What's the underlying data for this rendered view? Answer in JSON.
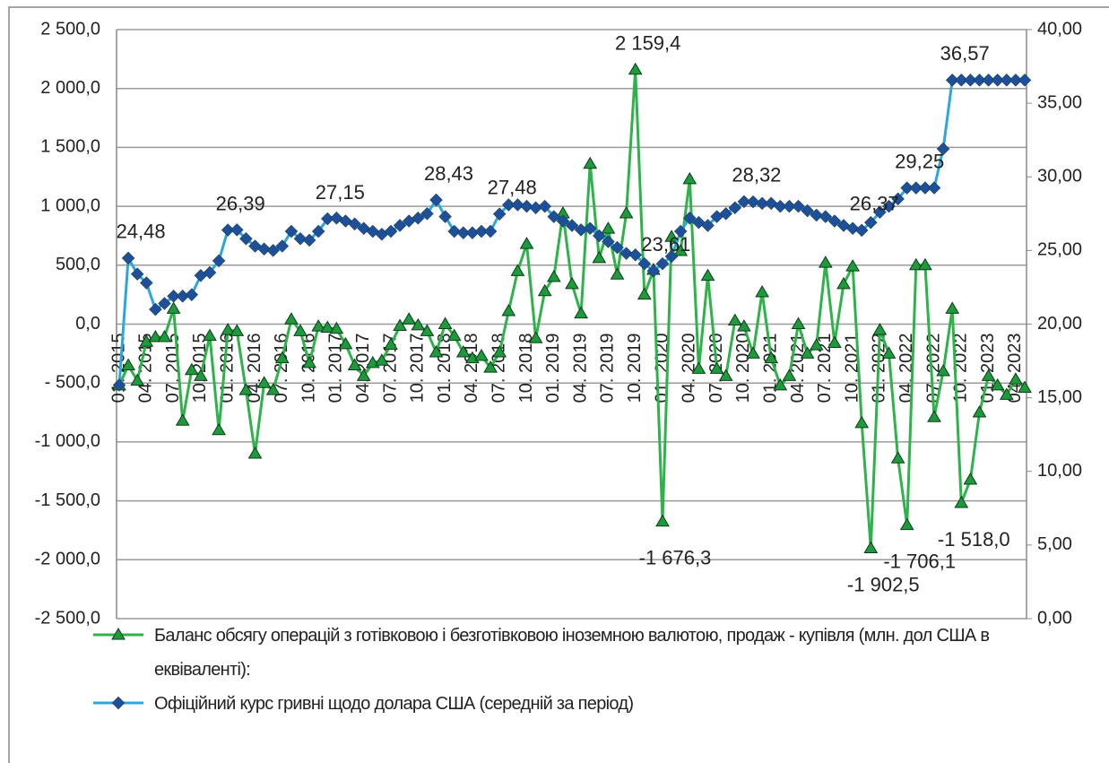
{
  "chart_data": {
    "type": "line",
    "categories": [
      "01. 2015",
      null,
      null,
      "04. 2015",
      null,
      null,
      "07. 2015",
      null,
      null,
      "10. 2015",
      null,
      null,
      "01. 2016",
      null,
      null,
      "04. 2016",
      null,
      null,
      "07. 2016",
      null,
      null,
      "10. 2016",
      null,
      null,
      "01. 2017",
      null,
      null,
      "04. 2017",
      null,
      null,
      "07. 2017",
      null,
      null,
      "10. 2017",
      null,
      null,
      "01. 2018",
      null,
      null,
      "04. 2018",
      null,
      null,
      "07. 2018",
      null,
      null,
      "10. 2018",
      null,
      null,
      "01. 2019",
      null,
      null,
      "04. 2019",
      null,
      null,
      "07. 2019",
      null,
      null,
      "10. 2019",
      null,
      null,
      "01. 2020",
      null,
      null,
      "04. 2020",
      null,
      null,
      "07. 2020",
      null,
      null,
      "10. 2020",
      null,
      null,
      "01. 2021",
      null,
      null,
      "04. 2021",
      null,
      null,
      "07. 2021",
      null,
      null,
      "10. 2021",
      null,
      null,
      "01. 2022",
      null,
      null,
      "04. 2022",
      null,
      null,
      "07. 2022",
      null,
      null,
      "10. 2022",
      null,
      null,
      "01. 2023",
      null,
      null,
      "04. 2023",
      null
    ],
    "series": [
      {
        "name": "Баланс обсягу операцій з готівковою і безготівковою іноземною валютою, продаж - купівля (млн. дол США в еквіваленті):",
        "color": "#2db34a",
        "marker_color": "#1e9a3c",
        "marker": "triangle",
        "values": [
          -520,
          -350,
          -480,
          -150,
          -110,
          -110,
          130,
          -820,
          -390,
          -440,
          -100,
          -900,
          -50,
          -60,
          -560,
          -1100,
          -500,
          -560,
          -290,
          40,
          -60,
          -330,
          -20,
          -30,
          -40,
          -170,
          -350,
          -440,
          -330,
          -310,
          -175,
          -15,
          40,
          -10,
          -60,
          -240,
          0,
          -100,
          -240,
          -290,
          -270,
          -370,
          -240,
          110,
          450,
          680,
          -120,
          280,
          400,
          940,
          340,
          90,
          1360,
          560,
          810,
          420,
          940,
          2159.4,
          250,
          460,
          -1676.3,
          740,
          620,
          1230,
          -380,
          410,
          -380,
          -440,
          30,
          -20,
          -250,
          270,
          -290,
          -520,
          -440,
          0,
          -250,
          -180,
          520,
          -160,
          340,
          490,
          -840,
          -1902.5,
          -50,
          -250,
          -1140,
          -1706.1,
          500,
          500,
          -790,
          -400,
          130,
          -1518.0,
          -1320,
          -750,
          -440,
          -520,
          -600,
          -470,
          -540
        ],
        "value_labels": [
          null,
          null,
          null,
          null,
          null,
          null,
          null,
          null,
          null,
          null,
          null,
          null,
          null,
          null,
          null,
          null,
          null,
          null,
          null,
          null,
          null,
          null,
          null,
          null,
          null,
          null,
          null,
          null,
          null,
          null,
          null,
          null,
          null,
          null,
          null,
          null,
          null,
          null,
          null,
          null,
          null,
          null,
          null,
          null,
          null,
          null,
          null,
          null,
          null,
          null,
          null,
          null,
          null,
          null,
          null,
          null,
          null,
          "2 159,4",
          null,
          null,
          "-1 676,3",
          null,
          null,
          null,
          null,
          null,
          null,
          null,
          null,
          null,
          null,
          null,
          null,
          null,
          null,
          null,
          null,
          null,
          null,
          null,
          null,
          null,
          null,
          "-1 902,5",
          null,
          null,
          null,
          "-1 706,1",
          null,
          null,
          null,
          null,
          null,
          "-1 518,0",
          null,
          null,
          null,
          null,
          null,
          null,
          null
        ]
      },
      {
        "name": "Офіційний курс гривні щодо долара США (середній за період)",
        "color": "#2aa7e0",
        "marker_color": "#1f4e9a",
        "marker": "diamond",
        "axis": "y2",
        "values": [
          15.86,
          24.48,
          23.4,
          22.8,
          21.0,
          21.4,
          21.9,
          21.9,
          22.0,
          23.3,
          23.5,
          24.3,
          26.39,
          26.4,
          25.8,
          25.3,
          25.1,
          25.0,
          25.3,
          26.3,
          25.8,
          25.7,
          26.3,
          27.15,
          27.2,
          27.0,
          26.8,
          26.5,
          26.3,
          26.1,
          26.3,
          26.7,
          27.0,
          27.2,
          27.5,
          28.43,
          27.3,
          26.3,
          26.2,
          26.2,
          26.3,
          26.3,
          27.48,
          28.1,
          28.1,
          28.0,
          27.9,
          28.0,
          27.3,
          27.0,
          26.7,
          26.4,
          26.5,
          26.0,
          25.6,
          25.2,
          24.8,
          24.7,
          24.1,
          23.61,
          24.1,
          24.6,
          26.3,
          27.2,
          26.9,
          26.7,
          27.3,
          27.5,
          27.9,
          28.32,
          28.3,
          28.2,
          28.2,
          28.0,
          28.0,
          28.0,
          27.7,
          27.4,
          27.3,
          27.0,
          26.7,
          26.5,
          26.37,
          26.9,
          27.6,
          28.0,
          28.5,
          29.25,
          29.25,
          29.25,
          29.25,
          31.9,
          36.57,
          36.57,
          36.57,
          36.57,
          36.57,
          36.57,
          36.57,
          36.57,
          36.57
        ],
        "value_labels": [
          null,
          "24,48",
          null,
          null,
          null,
          null,
          null,
          null,
          null,
          null,
          null,
          null,
          "26,39",
          null,
          null,
          null,
          null,
          null,
          null,
          null,
          null,
          null,
          null,
          "27,15",
          null,
          null,
          null,
          null,
          null,
          null,
          null,
          null,
          null,
          null,
          null,
          "28,43",
          null,
          null,
          null,
          null,
          null,
          null,
          "27,48",
          null,
          null,
          null,
          null,
          null,
          null,
          null,
          null,
          null,
          null,
          null,
          null,
          null,
          null,
          null,
          null,
          "23,61",
          null,
          null,
          null,
          null,
          null,
          null,
          null,
          null,
          null,
          "28,32",
          null,
          null,
          null,
          null,
          null,
          null,
          null,
          null,
          null,
          null,
          null,
          null,
          "26,37",
          null,
          null,
          null,
          null,
          "29,25",
          null,
          null,
          null,
          null,
          "36,57",
          null,
          null,
          null,
          null,
          null,
          null,
          null,
          null
        ]
      }
    ],
    "ylim": [
      -2500,
      2500
    ],
    "yticks": [
      {
        "value": -2500,
        "label": "-2 500,0"
      },
      {
        "value": -2000,
        "label": "-2 000,0"
      },
      {
        "value": -1500,
        "label": "-1 500,0"
      },
      {
        "value": -1000,
        "label": "-1 000,0"
      },
      {
        "value": -500,
        "label": "- 500,0"
      },
      {
        "value": 0,
        "label": "0,0"
      },
      {
        "value": 500,
        "label": "500,0"
      },
      {
        "value": 1000,
        "label": "1 000,0"
      },
      {
        "value": 1500,
        "label": "1 500,0"
      },
      {
        "value": 2000,
        "label": "2 000,0"
      },
      {
        "value": 2500,
        "label": "2 500,0"
      }
    ],
    "y2lim": [
      0,
      40
    ],
    "y2ticks": [
      {
        "value": 0,
        "label": "0,00"
      },
      {
        "value": 5,
        "label": "5,00"
      },
      {
        "value": 10,
        "label": "10,00"
      },
      {
        "value": 15,
        "label": "15,00"
      },
      {
        "value": 20,
        "label": "20,00"
      },
      {
        "value": 25,
        "label": "25,00"
      },
      {
        "value": 30,
        "label": "30,00"
      },
      {
        "value": 35,
        "label": "35,00"
      },
      {
        "value": 40,
        "label": "40,00"
      }
    ],
    "grid": true,
    "legend": "bottom"
  }
}
